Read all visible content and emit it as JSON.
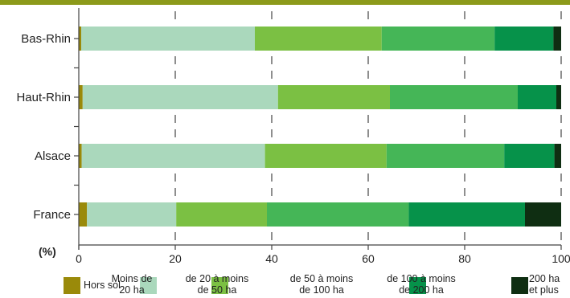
{
  "chart_data": {
    "type": "bar",
    "orientation": "horizontal",
    "stacked": true,
    "categories": [
      "Bas-Rhin",
      "Haut-Rhin",
      "Alsace",
      "France"
    ],
    "series": [
      {
        "name": "Hors sol",
        "color": "#9a8a0a",
        "values": [
          0.5,
          0.8,
          0.6,
          1.7
        ]
      },
      {
        "name": "Moins de\n20 ha",
        "color": "#aad8bc",
        "values": [
          36.0,
          40.5,
          38.0,
          18.5
        ]
      },
      {
        "name": "de 20 à moins\nde 50 ha",
        "color": "#7bc043",
        "values": [
          26.3,
          23.2,
          25.2,
          18.8
        ]
      },
      {
        "name": "de 50 à moins\nde 100 ha",
        "color": "#45b657",
        "values": [
          23.4,
          26.5,
          24.4,
          29.4
        ]
      },
      {
        "name": "de 100 à moins\nde 200 ha",
        "color": "#06924a",
        "values": [
          12.2,
          8.0,
          10.4,
          24.1
        ]
      },
      {
        "name": "200 ha\net plus",
        "color": "#0f2e12",
        "values": [
          1.6,
          1.0,
          1.4,
          7.5
        ]
      }
    ],
    "xlim": [
      0,
      100
    ],
    "xticks": [
      "0",
      "20",
      "40",
      "60",
      "80",
      "100"
    ],
    "xlabel": "(%)",
    "grid": "dashed-vertical",
    "legend_position": "bottom"
  }
}
